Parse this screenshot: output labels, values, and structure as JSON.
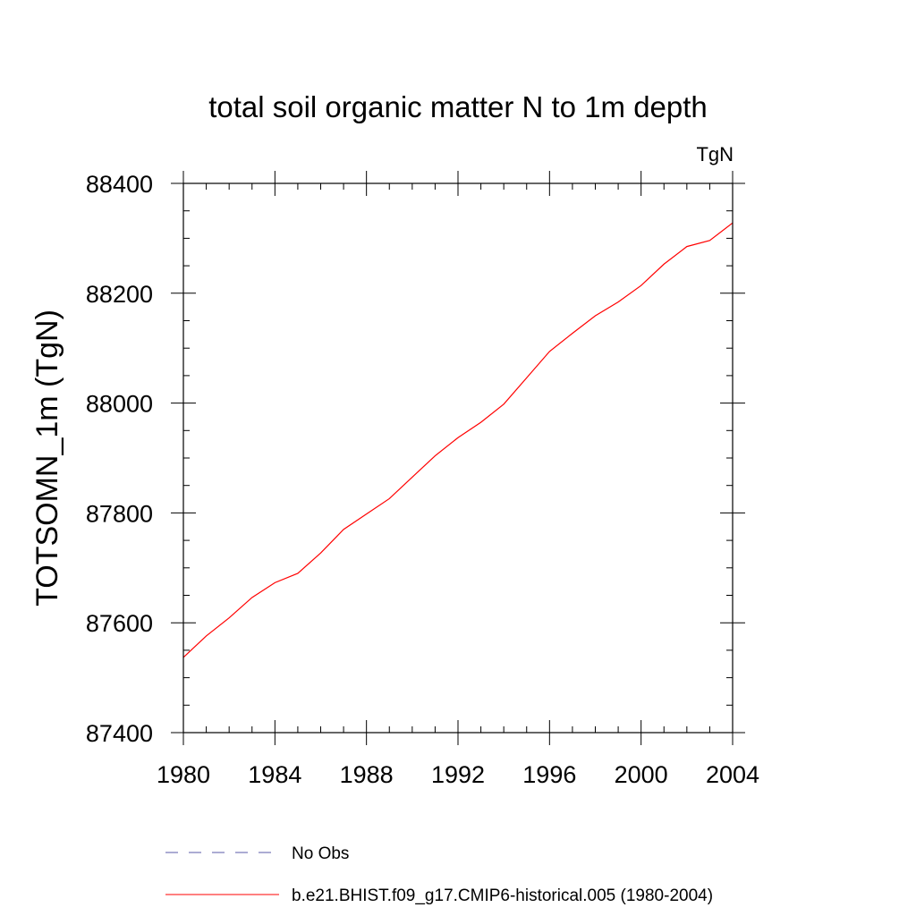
{
  "chart_data": {
    "type": "line",
    "title": "total soil organic matter N to 1m depth",
    "units": "TgN",
    "xlabel": "",
    "ylabel": "TOTSOMN_1m  (TgN)",
    "xlim": [
      1980,
      2004
    ],
    "ylim": [
      87400,
      88400
    ],
    "xticks": [
      "1980",
      "1984",
      "1988",
      "1992",
      "1996",
      "2000",
      "2004"
    ],
    "yticks": [
      "87400",
      "87600",
      "87800",
      "88000",
      "88200",
      "88400"
    ],
    "grid": false,
    "legend_position": "bottom",
    "x": [
      1980,
      1981,
      1982,
      1983,
      1984,
      1985,
      1986,
      1987,
      1988,
      1989,
      1990,
      1991,
      1992,
      1993,
      1994,
      1995,
      1996,
      1997,
      1998,
      1999,
      2000,
      2001,
      2002,
      2003,
      2004
    ],
    "series": [
      {
        "name": "b.e21.BHIST.f09_g17.CMIP6-historical.005 (1980-2004)",
        "color": "#ff0000",
        "style": "solid",
        "values": [
          87537,
          87576,
          87609,
          87646,
          87673,
          87690,
          87727,
          87770,
          87798,
          87826,
          87865,
          87904,
          87937,
          87965,
          87998,
          88046,
          88094,
          88127,
          88159,
          88184,
          88214,
          88253,
          88285,
          88296,
          88328
        ]
      }
    ],
    "legend": [
      {
        "label": "No Obs",
        "color": "#5a5aaa",
        "style": "dashed"
      },
      {
        "label": "b.e21.BHIST.f09_g17.CMIP6-historical.005 (1980-2004)",
        "color": "#ff0000",
        "style": "solid"
      }
    ]
  }
}
